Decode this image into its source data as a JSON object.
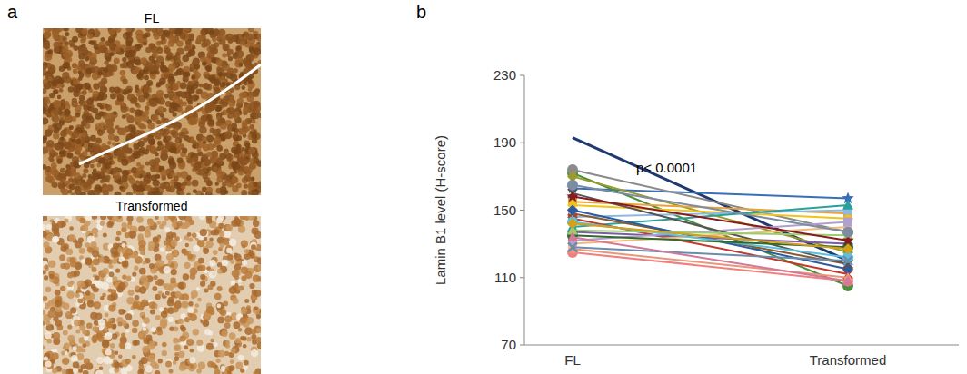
{
  "figure": {
    "panel_labels": [
      "a",
      "b"
    ],
    "images": [
      {
        "title": "FL"
      },
      {
        "title": "Transformed"
      }
    ]
  },
  "chart_data": {
    "type": "line",
    "y_label": "Lamin B1 level (H-score)",
    "annotation": "p< 0.0001",
    "categories": [
      "FL",
      "Transformed"
    ],
    "ylim": [
      70,
      230
    ],
    "yticks": [
      70,
      110,
      150,
      190,
      230
    ],
    "grid": false,
    "series": [
      {
        "color": "#1f3a6e",
        "marker": "none",
        "values": [
          193,
          120
        ]
      },
      {
        "color": "#3a6fb5",
        "marker": "star",
        "values": [
          163,
          157
        ]
      },
      {
        "color": "#4a8f3a",
        "marker": "circle",
        "values": [
          172,
          105
        ]
      },
      {
        "color": "#8a8a8a",
        "marker": "circle",
        "values": [
          174,
          137
        ]
      },
      {
        "color": "#9a9a2a",
        "marker": "diamond",
        "values": [
          170,
          125
        ]
      },
      {
        "color": "#e8a33a",
        "marker": "square",
        "values": [
          155,
          148
        ]
      },
      {
        "color": "#f0c419",
        "marker": "diamond",
        "values": [
          153,
          145
        ]
      },
      {
        "color": "#8fb8e0",
        "marker": "square",
        "values": [
          146,
          150
        ]
      },
      {
        "color": "#2aa198",
        "marker": "triangle",
        "values": [
          140,
          153
        ]
      },
      {
        "color": "#f08080",
        "marker": "circle",
        "values": [
          125,
          108
        ]
      },
      {
        "color": "#8b5a2b",
        "marker": "x",
        "values": [
          148,
          118
        ]
      },
      {
        "color": "#c0392b",
        "marker": "x",
        "values": [
          145,
          112
        ]
      },
      {
        "color": "#7d5ba6",
        "marker": "diamond",
        "values": [
          137,
          130
        ]
      },
      {
        "color": "#2c5aa0",
        "marker": "diamond",
        "values": [
          150,
          115
        ]
      },
      {
        "color": "#f5b97a",
        "marker": "square",
        "values": [
          130,
          140
        ]
      },
      {
        "color": "#b0a0d0",
        "marker": "square",
        "values": [
          132,
          143
        ]
      },
      {
        "color": "#e9967a",
        "marker": "triangle",
        "values": [
          127,
          110
        ]
      },
      {
        "color": "#555555",
        "marker": "x",
        "values": [
          160,
          118
        ]
      },
      {
        "color": "#5bc0de",
        "marker": "circle",
        "values": [
          143,
          122
        ]
      },
      {
        "color": "#2e6b2e",
        "marker": "circle",
        "values": [
          135,
          128
        ]
      },
      {
        "color": "#9acd6e",
        "marker": "triangle",
        "values": [
          138,
          135
        ]
      },
      {
        "color": "#8b1a1a",
        "marker": "star",
        "values": [
          158,
          132
        ]
      },
      {
        "color": "#6a8caf",
        "marker": "x",
        "values": [
          128,
          120
        ]
      },
      {
        "color": "#d4a017",
        "marker": "diamond",
        "values": [
          142,
          127
        ]
      },
      {
        "color": "#d4789a",
        "marker": "triangle",
        "values": [
          134,
          108
        ]
      },
      {
        "color": "#7b8ca3",
        "marker": "circle",
        "values": [
          165,
          137
        ]
      }
    ]
  }
}
